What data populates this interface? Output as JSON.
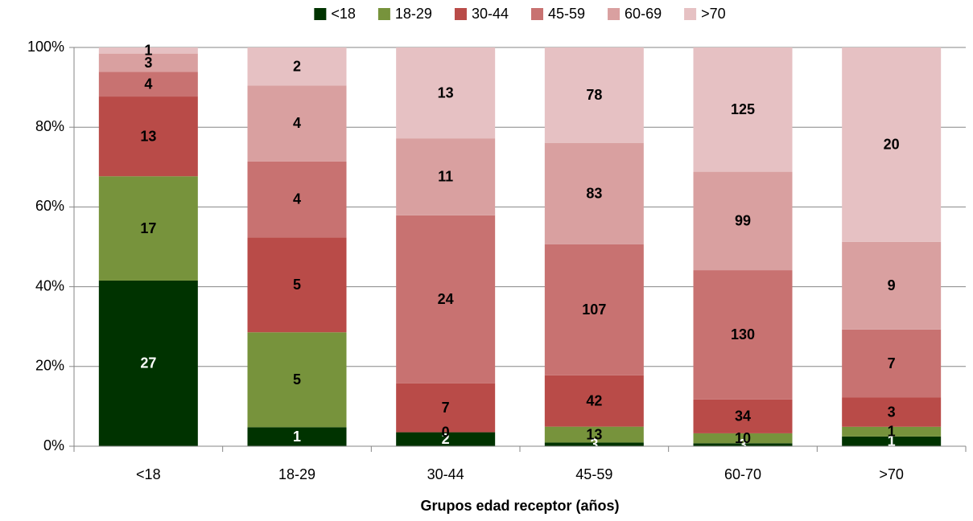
{
  "chart_data": {
    "type": "bar",
    "stacked": "percent",
    "x_label": "Grupos edad receptor (años)",
    "categories": [
      "<18",
      "18-29",
      "30-44",
      "45-59",
      "60-70",
      ">70"
    ],
    "series": [
      {
        "name": "<18",
        "color": "#003300",
        "label_color": "#ffffff",
        "values": [
          27,
          1,
          2,
          3,
          3,
          1
        ]
      },
      {
        "name": "18-29",
        "color": "#77933c",
        "label_color": "#000000",
        "values": [
          17,
          5,
          0,
          13,
          10,
          1
        ]
      },
      {
        "name": "30-44",
        "color": "#b94b48",
        "label_color": "#000000",
        "values": [
          13,
          5,
          7,
          42,
          34,
          3
        ]
      },
      {
        "name": "45-59",
        "color": "#c87271",
        "label_color": "#000000",
        "values": [
          4,
          4,
          24,
          107,
          130,
          7
        ]
      },
      {
        "name": "60-69",
        "color": "#d9a0a0",
        "label_color": "#000000",
        "values": [
          3,
          4,
          11,
          83,
          99,
          9
        ]
      },
      {
        "name": ">70",
        "color": "#e6c1c3",
        "label_color": "#000000",
        "values": [
          1,
          2,
          13,
          78,
          125,
          20
        ]
      }
    ],
    "ylim": [
      0,
      100
    ],
    "yticks": [
      {
        "value": 0,
        "label": "0%"
      },
      {
        "value": 20,
        "label": "20%"
      },
      {
        "value": 40,
        "label": "40%"
      },
      {
        "value": 60,
        "label": "60%"
      },
      {
        "value": 80,
        "label": "80%"
      },
      {
        "value": 100,
        "label": "100%"
      }
    ],
    "grid": true,
    "legend": "top"
  }
}
